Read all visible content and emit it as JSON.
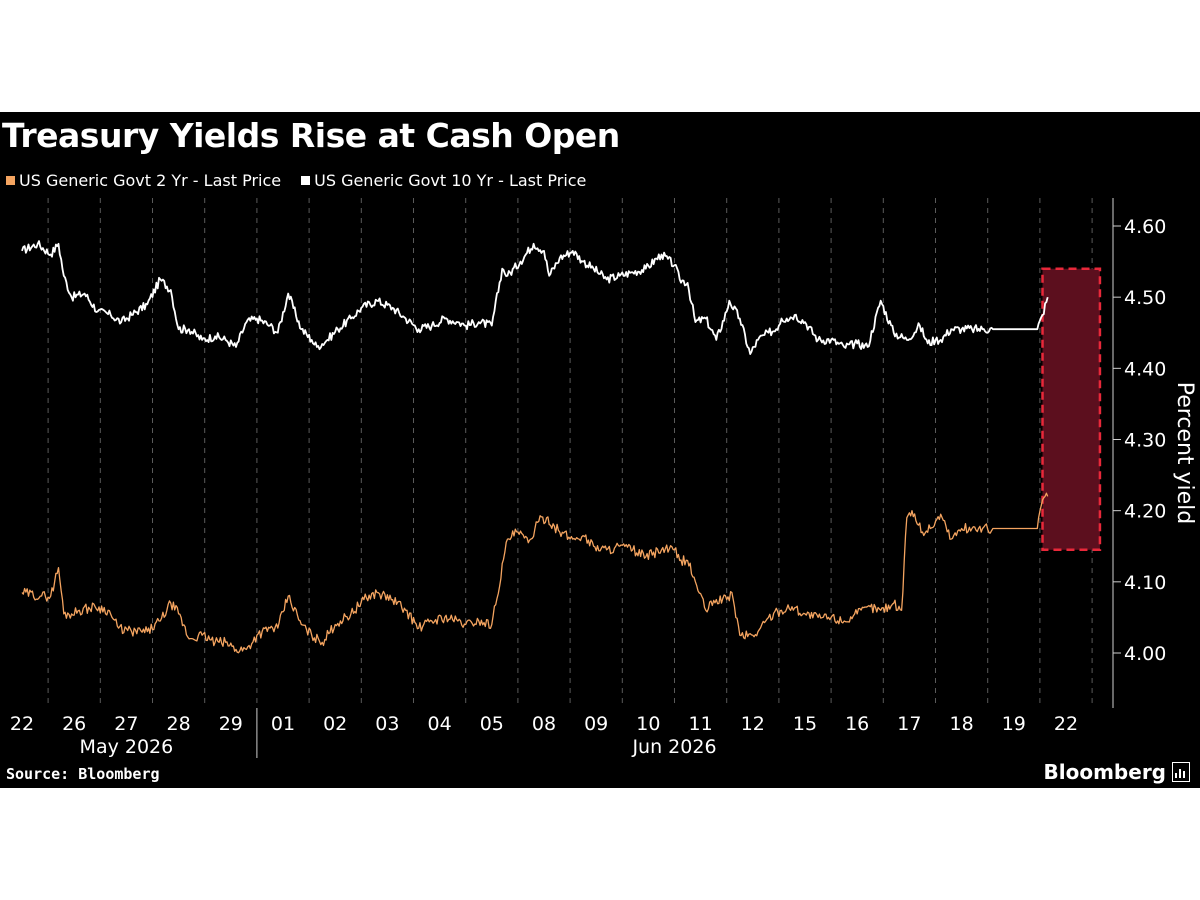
{
  "header": {
    "title": "Treasury Yields Rise at Cash Open"
  },
  "legend": [
    {
      "label": "US Generic Govt 2 Yr - Last Price",
      "color": "#f4a460"
    },
    {
      "label": "US Generic Govt 10 Yr - Last Price",
      "color": "#ffffff"
    }
  ],
  "footer": {
    "source": "Source: Bloomberg",
    "brand": "Bloomberg"
  },
  "colors": {
    "background": "#000000",
    "series_2yr": "#f4a460",
    "series_10yr": "#ffffff",
    "highlight_fill": "#5c0f1e",
    "highlight_border": "#e8283a"
  },
  "chart_data": {
    "type": "line",
    "ylabel": "Percent yield",
    "ylim": [
      3.93,
      4.64
    ],
    "yticks": [
      "4.00",
      "4.10",
      "4.20",
      "4.30",
      "4.40",
      "4.50",
      "4.60"
    ],
    "y_axis_position": "right",
    "grid": "vertical dashed",
    "legend_position": "top-left",
    "x_tick_labels": [
      "22",
      "26",
      "27",
      "28",
      "29",
      "01",
      "02",
      "03",
      "04",
      "05",
      "08",
      "09",
      "10",
      "11",
      "12",
      "15",
      "16",
      "17",
      "18",
      "19",
      "22"
    ],
    "month_labels": [
      {
        "label": "May 2026",
        "first_index": 0,
        "last_index": 4
      },
      {
        "label": "Jun 2026",
        "first_index": 5,
        "last_index": 20
      }
    ],
    "highlight": {
      "label": "cash open",
      "x_from": 19.55,
      "x_to": 20.65,
      "y_from": 4.145,
      "y_to": 4.54
    },
    "series": [
      {
        "name": "US Generic Govt 10 Yr - Last Price",
        "x": [
          0,
          0.3,
          0.55,
          0.7,
          0.8,
          0.95,
          1.2,
          1.45,
          1.7,
          1.9,
          2.1,
          2.4,
          2.65,
          2.85,
          3.0,
          3.2,
          3.45,
          3.7,
          3.9,
          4.1,
          4.3,
          4.5,
          4.75,
          4.9,
          5.1,
          5.35,
          5.55,
          5.65,
          5.85,
          6.05,
          6.3,
          6.5,
          6.8,
          7.1,
          7.35,
          7.6,
          7.85,
          8.1,
          8.35,
          8.5,
          8.75,
          9.0,
          9.2,
          9.3,
          9.55,
          9.8,
          10.0,
          10.1,
          10.3,
          10.55,
          10.75,
          10.95,
          11.2,
          11.45,
          11.7,
          11.95,
          12.25,
          12.5,
          12.6,
          12.75,
          12.9,
          13.1,
          13.3,
          13.5,
          13.55,
          13.75,
          13.95,
          14.1,
          14.3,
          14.45,
          14.55,
          14.65,
          14.8,
          15.0,
          15.25,
          15.5,
          15.75,
          16.0,
          16.2,
          16.45,
          16.7,
          16.95,
          17.2,
          17.35,
          17.5,
          17.6,
          17.8,
          18.0,
          18.2,
          18.4,
          18.6,
          19.0,
          19.45,
          19.55,
          19.65
        ],
        "values": [
          4.565,
          4.575,
          4.56,
          4.575,
          4.53,
          4.5,
          4.505,
          4.48,
          4.475,
          4.465,
          4.475,
          4.49,
          4.525,
          4.51,
          4.455,
          4.455,
          4.44,
          4.445,
          4.44,
          4.43,
          4.465,
          4.47,
          4.46,
          4.45,
          4.505,
          4.455,
          4.44,
          4.43,
          4.44,
          4.455,
          4.47,
          4.485,
          4.495,
          4.485,
          4.47,
          4.455,
          4.46,
          4.47,
          4.465,
          4.46,
          4.465,
          4.46,
          4.54,
          4.53,
          4.55,
          4.575,
          4.565,
          4.53,
          4.555,
          4.565,
          4.55,
          4.54,
          4.525,
          4.53,
          4.535,
          4.54,
          4.56,
          4.545,
          4.525,
          4.52,
          4.465,
          4.47,
          4.44,
          4.48,
          4.495,
          4.47,
          4.42,
          4.44,
          4.45,
          4.455,
          4.47,
          4.47,
          4.475,
          4.465,
          4.44,
          4.44,
          4.43,
          4.435,
          4.43,
          4.495,
          4.45,
          4.44,
          4.46,
          4.435,
          4.44,
          4.44,
          4.455,
          4.455,
          4.455,
          4.455,
          4.455,
          4.455,
          4.455,
          4.475,
          4.5
        ]
      },
      {
        "name": "US Generic Govt 2 Yr - Last Price",
        "x": [
          0,
          0.35,
          0.55,
          0.7,
          0.8,
          0.95,
          1.1,
          1.4,
          1.65,
          1.85,
          2.1,
          2.4,
          2.65,
          2.85,
          3.0,
          3.2,
          3.45,
          3.7,
          3.9,
          4.1,
          4.3,
          4.5,
          4.75,
          4.9,
          5.1,
          5.35,
          5.55,
          5.75,
          6.0,
          6.3,
          6.55,
          6.8,
          7.1,
          7.35,
          7.6,
          7.85,
          8.1,
          8.35,
          8.5,
          8.75,
          9.0,
          9.3,
          9.5,
          9.7,
          9.9,
          10.05,
          10.3,
          10.55,
          10.75,
          10.95,
          11.2,
          11.45,
          11.7,
          11.95,
          12.25,
          12.5,
          12.6,
          12.75,
          12.9,
          13.1,
          13.3,
          13.5,
          13.6,
          13.75,
          14.0,
          14.1,
          14.3,
          14.55,
          14.75,
          15.0,
          15.25,
          15.5,
          15.75,
          16.0,
          16.25,
          16.45,
          16.7,
          16.85,
          16.95,
          17.05,
          17.25,
          17.4,
          17.6,
          17.8,
          18.0,
          18.2,
          18.4,
          18.6,
          19.0,
          19.45,
          19.55,
          19.65
        ],
        "values": [
          4.085,
          4.08,
          4.08,
          4.12,
          4.055,
          4.055,
          4.06,
          4.065,
          4.06,
          4.035,
          4.03,
          4.03,
          4.045,
          4.07,
          4.055,
          4.02,
          4.025,
          4.015,
          4.015,
          4.005,
          4.005,
          4.025,
          4.035,
          4.035,
          4.08,
          4.04,
          4.025,
          4.015,
          4.04,
          4.055,
          4.075,
          4.085,
          4.075,
          4.06,
          4.035,
          4.045,
          4.05,
          4.045,
          4.04,
          4.045,
          4.04,
          4.16,
          4.17,
          4.155,
          4.185,
          4.19,
          4.17,
          4.16,
          4.165,
          4.15,
          4.145,
          4.15,
          4.145,
          4.135,
          4.145,
          4.145,
          4.13,
          4.13,
          4.1,
          4.06,
          4.075,
          4.075,
          4.085,
          4.025,
          4.025,
          4.03,
          4.05,
          4.06,
          4.065,
          4.055,
          4.05,
          4.05,
          4.045,
          4.055,
          4.065,
          4.06,
          4.07,
          4.06,
          4.19,
          4.2,
          4.17,
          4.175,
          4.195,
          4.16,
          4.175,
          4.175,
          4.175,
          4.175,
          4.175,
          4.175,
          4.215,
          4.22
        ]
      }
    ]
  }
}
